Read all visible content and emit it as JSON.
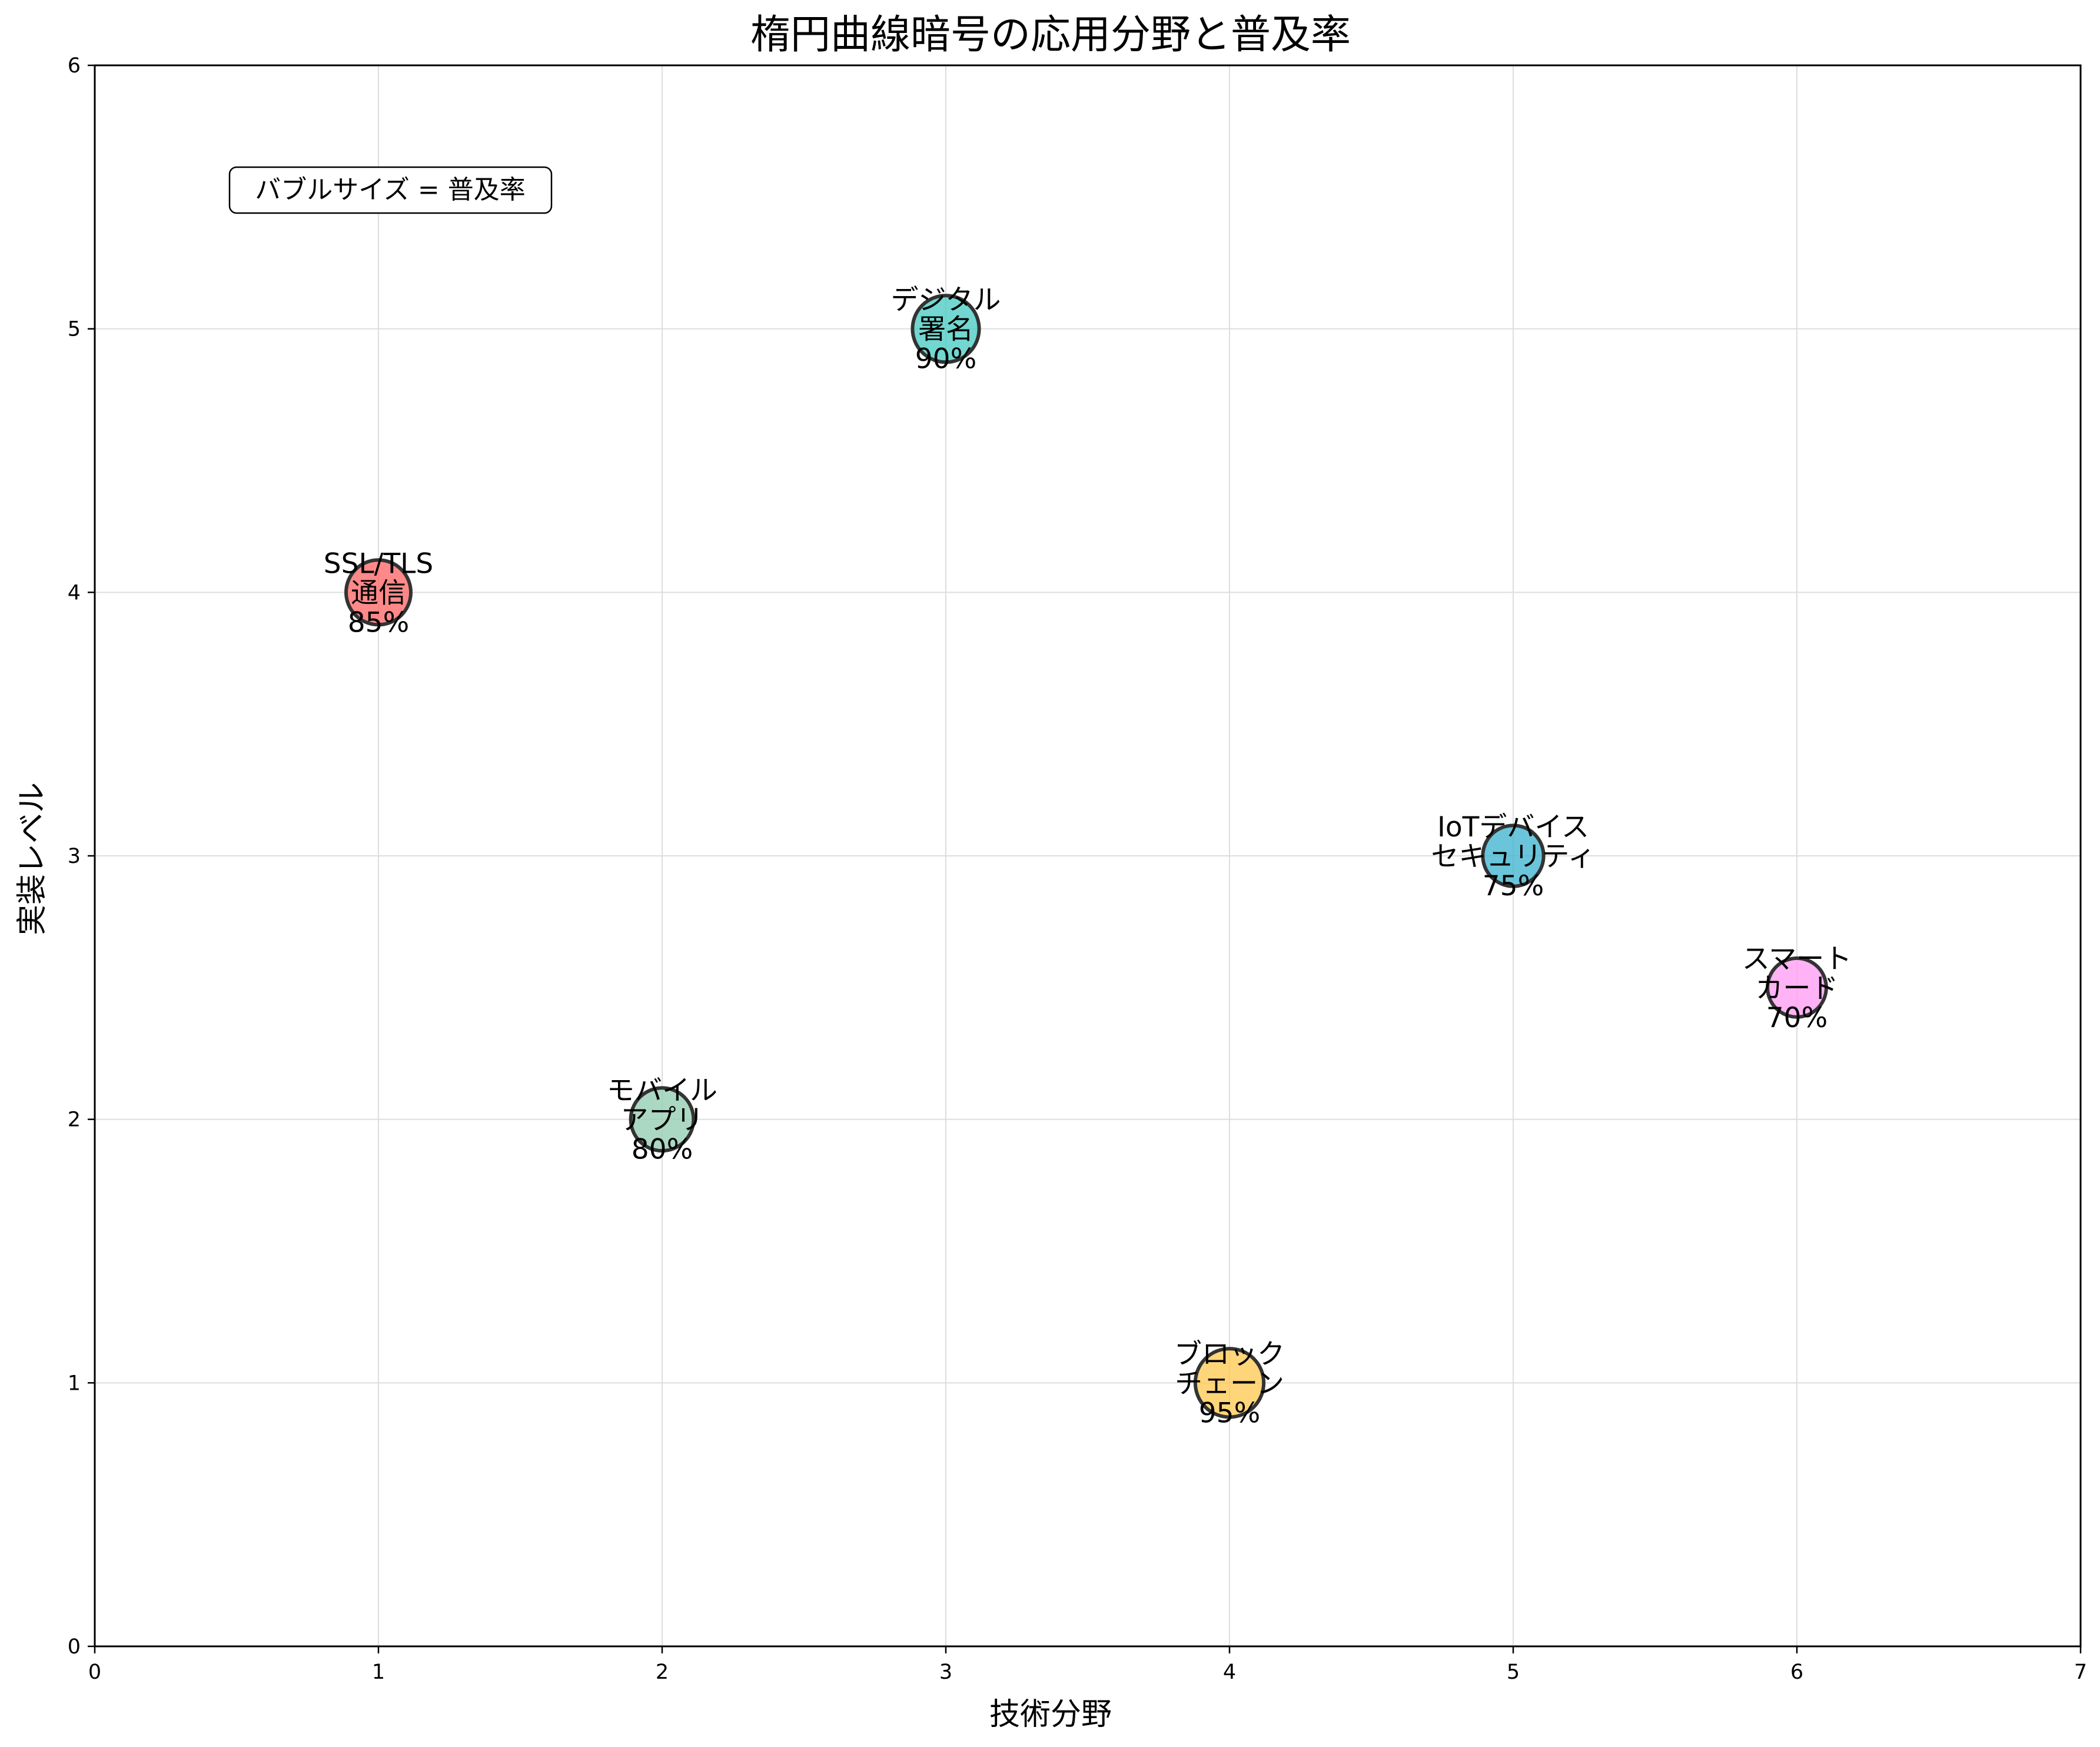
{
  "chart_data": {
    "type": "scatter",
    "title": "楕円曲線暗号の応用分野と普及率",
    "xlabel": "技術分野",
    "ylabel": "実装レベル",
    "xlim": [
      0,
      7
    ],
    "ylim": [
      0,
      6
    ],
    "xticks": [
      "0",
      "1",
      "2",
      "3",
      "4",
      "5",
      "6",
      "7"
    ],
    "yticks": [
      "0",
      "1",
      "2",
      "3",
      "4",
      "5",
      "6"
    ],
    "grid": true,
    "annotation": "バブルサイズ = 普及率",
    "points": [
      {
        "x": 1,
        "y": 4,
        "size": 85,
        "label": [
          "SSL/TLS",
          "通信",
          "85%"
        ],
        "color": "#FF6B6B"
      },
      {
        "x": 2,
        "y": 2,
        "size": 80,
        "label": [
          "モバイル",
          "アプリ",
          "80%"
        ],
        "color": "#96CEB4"
      },
      {
        "x": 3,
        "y": 5,
        "size": 90,
        "label": [
          "デジタル",
          "署名",
          "90%"
        ],
        "color": "#4ECDC4"
      },
      {
        "x": 4,
        "y": 1,
        "size": 95,
        "label": [
          "ブロック",
          "チェーン",
          "95%"
        ],
        "color": "#FECA57"
      },
      {
        "x": 5,
        "y": 3,
        "size": 75,
        "label": [
          "IoTデバイス",
          "セキュリティ",
          "75%"
        ],
        "color": "#45B7D1"
      },
      {
        "x": 6,
        "y": 2.5,
        "size": 70,
        "label": [
          "スマート",
          "カード",
          "70%"
        ],
        "color": "#FF9FF3"
      }
    ]
  }
}
